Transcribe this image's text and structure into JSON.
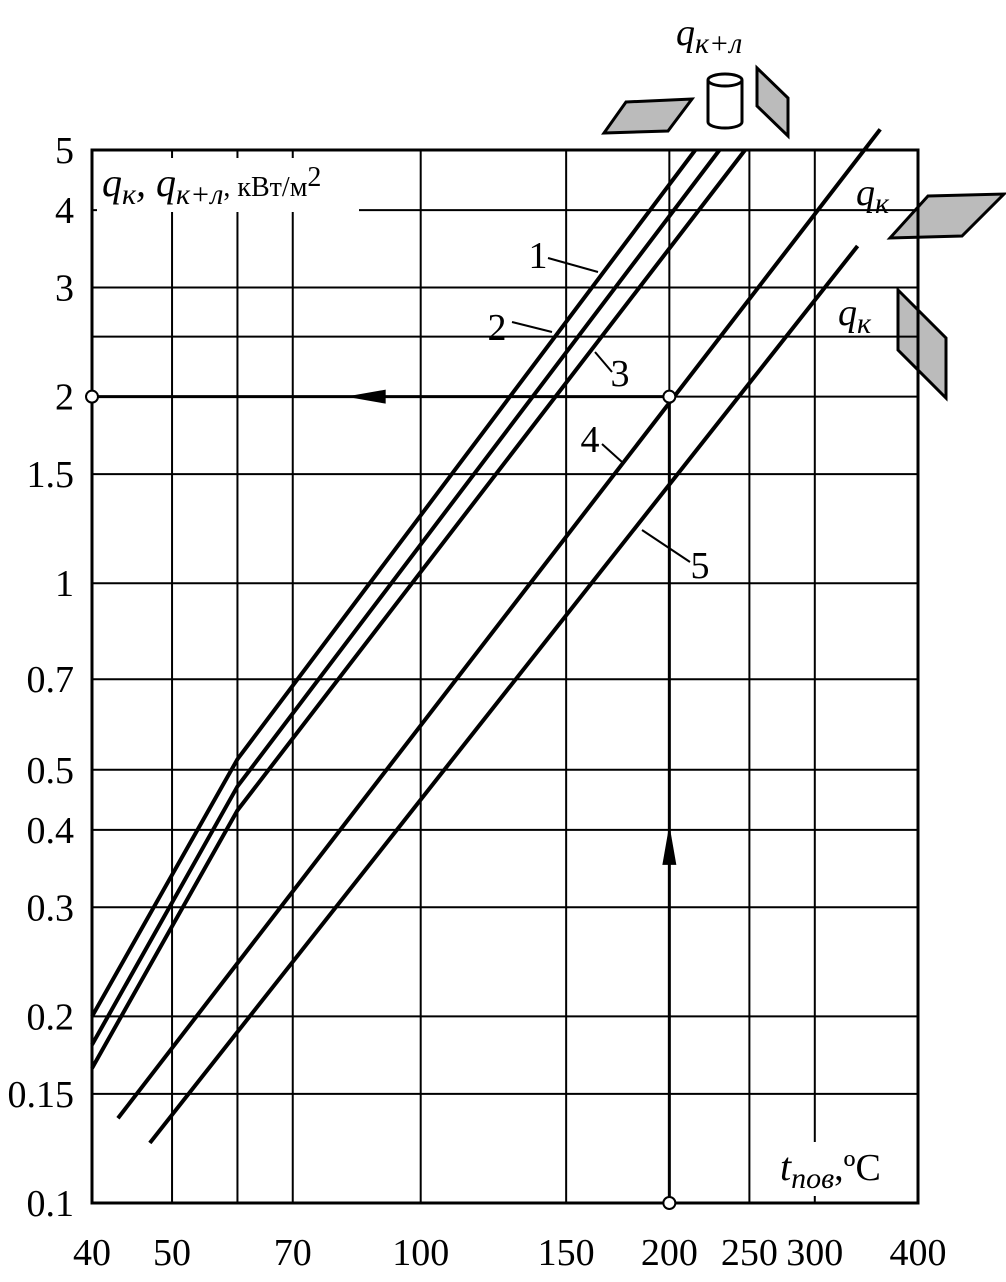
{
  "chart_data": {
    "type": "line",
    "ylabel": [
      "q",
      "к",
      ", q",
      "к+л",
      ", кВт/м",
      "2"
    ],
    "xlabel": [
      "t",
      "пов",
      ",ºС"
    ],
    "top_labels": [
      [
        "q",
        "к+л"
      ],
      [
        "q",
        "к"
      ],
      [
        "q",
        "к"
      ]
    ],
    "log_x": true,
    "log_y": true,
    "grid": true,
    "xlim": [
      40,
      400
    ],
    "ylim": [
      0.1,
      5
    ],
    "xticks": [
      40,
      50,
      70,
      100,
      150,
      200,
      250,
      300,
      400
    ],
    "yticks": [
      0.1,
      0.15,
      0.2,
      0.3,
      0.4,
      0.5,
      0.7,
      1,
      1.5,
      2,
      3,
      4,
      5
    ],
    "xminor": [
      60
    ],
    "yminor": [
      2.5
    ],
    "color": "#000000",
    "series": [
      {
        "name": "1",
        "x": [
          40,
          60,
          215
        ],
        "values": [
          0.2,
          0.52,
          5
        ]
      },
      {
        "name": "2",
        "x": [
          40,
          60,
          230
        ],
        "values": [
          0.18,
          0.47,
          5
        ]
      },
      {
        "name": "3",
        "x": [
          40,
          60,
          247
        ],
        "values": [
          0.165,
          0.43,
          5
        ]
      },
      {
        "name": "4",
        "x": [
          43,
          360
        ],
        "values": [
          0.137,
          5.4
        ]
      },
      {
        "name": "5",
        "x": [
          47,
          338
        ],
        "values": [
          0.125,
          3.5
        ]
      }
    ],
    "example": {
      "x": 200,
      "y": 2
    }
  }
}
